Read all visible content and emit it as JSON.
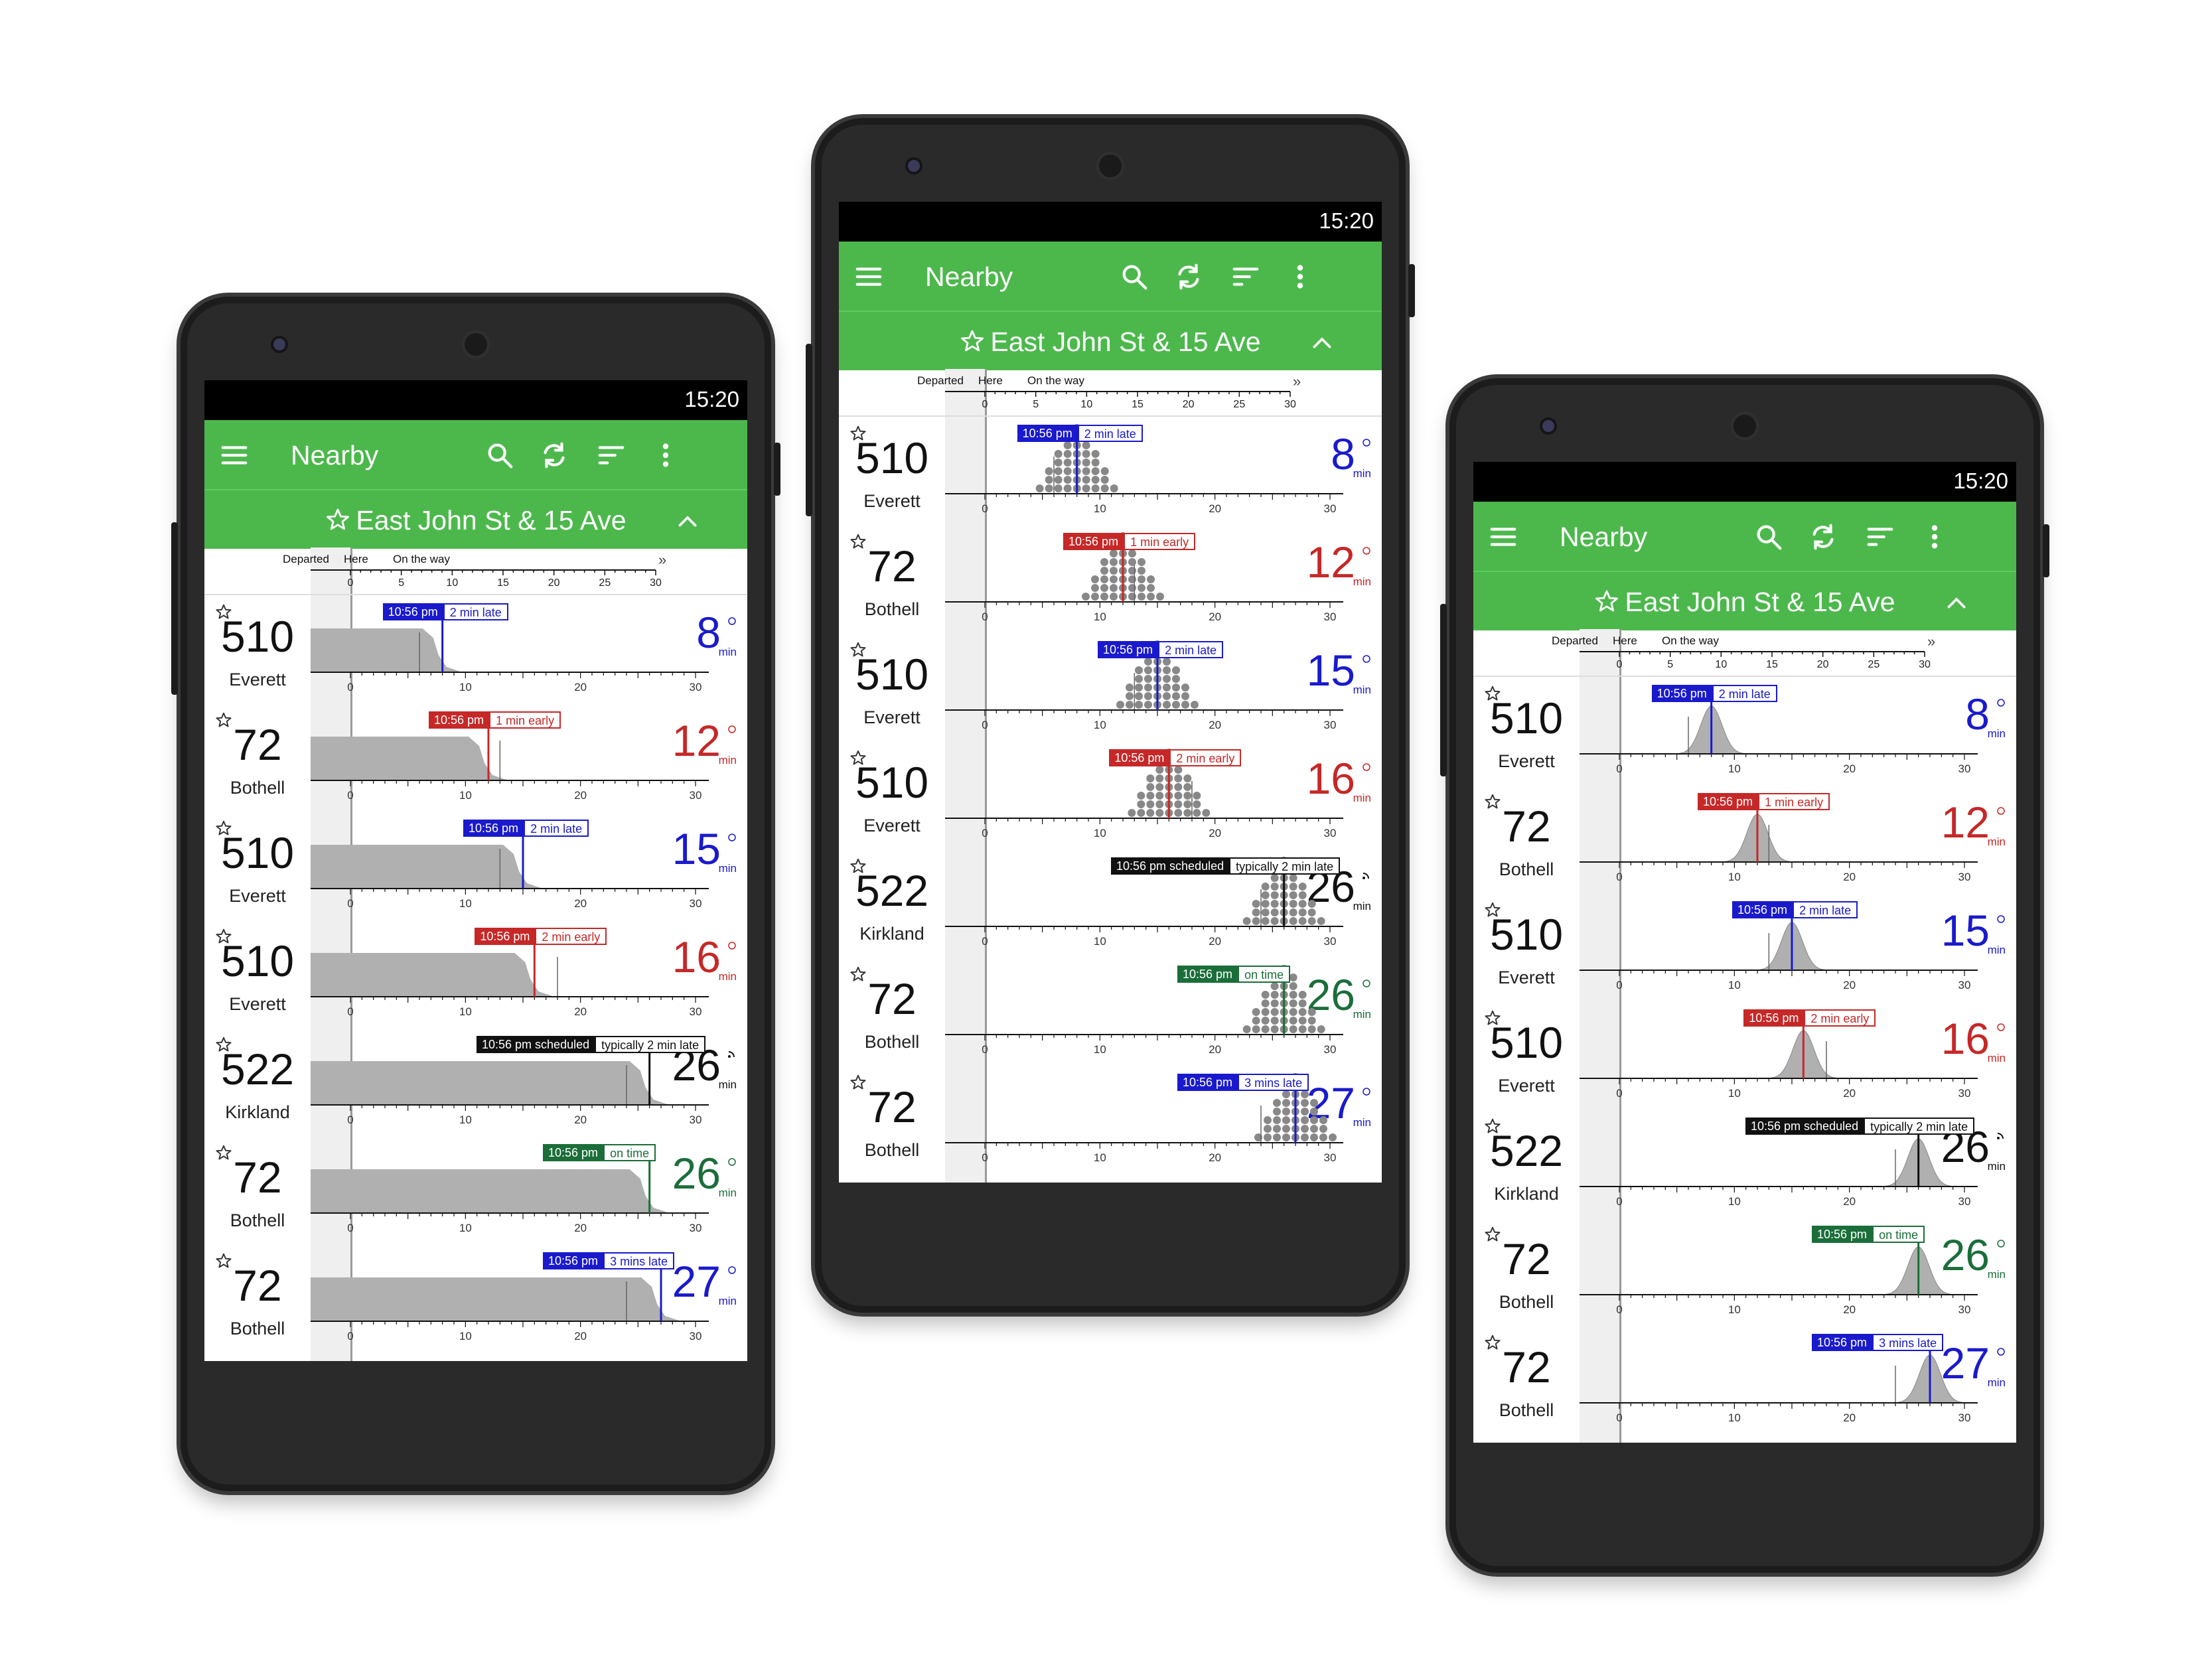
{
  "status_bar": {
    "time": "15:20"
  },
  "toolbar": {
    "title": "Nearby",
    "icons": [
      "menu-icon",
      "search-icon",
      "refresh-icon",
      "sort-icon",
      "overflow-icon"
    ]
  },
  "stop": {
    "name": "East John St & 15 Ave"
  },
  "timeline_header": {
    "departed": "Departed",
    "here": "Here",
    "on_the_way": "On the way",
    "ticks": [
      "0",
      "5",
      "10",
      "15",
      "20",
      "25",
      "30"
    ]
  },
  "axis_ticks": [
    "0",
    "10",
    "20",
    "30"
  ],
  "min_label": "min",
  "colors": {
    "toolbar_green": "#4cb84c",
    "blue": "#1a1acc",
    "red": "#c62828",
    "black": "#111111",
    "green": "#1b6e3a"
  },
  "arrivals": [
    {
      "route": "510",
      "destination": "Everett",
      "minutes": "8",
      "time": "10:56 pm",
      "status": "2 min late",
      "color": "blue",
      "realtime": true,
      "predicted_min": 8,
      "scheduled_min": 6
    },
    {
      "route": "72",
      "destination": "Bothell",
      "minutes": "12",
      "time": "10:56 pm",
      "status": "1 min early",
      "color": "red",
      "realtime": true,
      "predicted_min": 12,
      "scheduled_min": 13
    },
    {
      "route": "510",
      "destination": "Everett",
      "minutes": "15",
      "time": "10:56 pm",
      "status": "2 min late",
      "color": "blue",
      "realtime": true,
      "predicted_min": 15,
      "scheduled_min": 13
    },
    {
      "route": "510",
      "destination": "Everett",
      "minutes": "16",
      "time": "10:56 pm",
      "status": "2 min early",
      "color": "red",
      "realtime": true,
      "predicted_min": 16,
      "scheduled_min": 18
    },
    {
      "route": "522",
      "destination": "Kirkland",
      "minutes": "26",
      "time": "10:56 pm scheduled",
      "status": "typically 2 min late",
      "color": "black",
      "realtime": false,
      "predicted_min": 26,
      "scheduled_min": 24
    },
    {
      "route": "72",
      "destination": "Bothell",
      "minutes": "26",
      "time": "10:56 pm",
      "status": "on time",
      "color": "green",
      "realtime": true,
      "predicted_min": 26,
      "scheduled_min": 26
    },
    {
      "route": "72",
      "destination": "Bothell",
      "minutes": "27",
      "time": "10:56 pm",
      "status": "3 mins late",
      "color": "blue",
      "realtime": true,
      "predicted_min": 27,
      "scheduled_min": 24
    }
  ],
  "phones": [
    {
      "name": "phone-left",
      "chart_style": "area"
    },
    {
      "name": "phone-center",
      "chart_style": "dots"
    },
    {
      "name": "phone-right",
      "chart_style": "bell"
    }
  ]
}
